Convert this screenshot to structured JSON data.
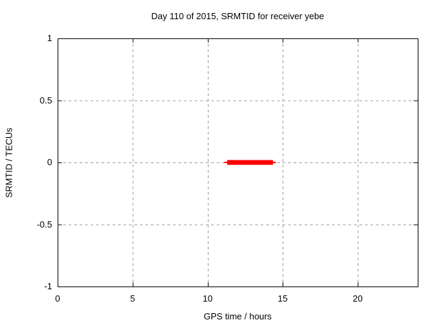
{
  "chart_data": {
    "type": "line",
    "title": "Day 110 of 2015, SRMTID for receiver yebe",
    "xlabel": "GPS time / hours",
    "ylabel": "SRMTID / TECUs",
    "xlim": [
      0,
      24
    ],
    "ylim": [
      -1,
      1
    ],
    "xtick_values": [
      0,
      5,
      10,
      15,
      20
    ],
    "xtick_labels": [
      "0",
      "5",
      "10",
      "15",
      "20"
    ],
    "ytick_values": [
      1,
      0.5,
      0,
      -0.5,
      -1
    ],
    "ytick_labels": [
      "1",
      "0.5",
      "0",
      "-0.5",
      "-1"
    ],
    "grid": true,
    "grid_style": "dashed",
    "legend": "none",
    "series": [
      {
        "name": "srmtid",
        "color": "#ff0000",
        "description": "SRMTID approximately 0 TECUs between about 11.1 and 14.5 GPS hours; no data elsewhere",
        "segments": [
          {
            "x_start": 11.1,
            "x_end": 14.55,
            "y": 0,
            "style": "thin"
          },
          {
            "x_start": 11.3,
            "x_end": 14.35,
            "y": 0,
            "style": "thick"
          }
        ]
      }
    ],
    "colors": {
      "background": "#ffffff",
      "border": "#000000",
      "grid": "#9c9c9c",
      "text": "#000000",
      "series": "#ff0000"
    }
  }
}
